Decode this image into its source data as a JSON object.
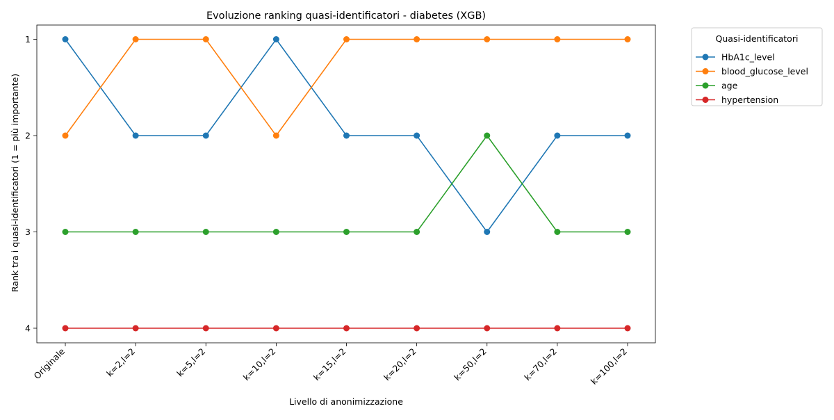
{
  "chart_data": {
    "type": "line",
    "title": "Evoluzione ranking quasi-identificatori - diabetes (XGB)",
    "xlabel": "Livello di anonimizzazione",
    "ylabel": "Rank tra i quasi-identificatori (1 = più importante)",
    "categories": [
      "Originale",
      "k=2,l=2",
      "k=5,l=2",
      "k=10,l=2",
      "k=15,l=2",
      "k=20,l=2",
      "k=50,l=2",
      "k=70,l=2",
      "k=100,l=2"
    ],
    "yticks": [
      "1",
      "2",
      "3",
      "4"
    ],
    "ylim": [
      1,
      4
    ],
    "y_inverted": true,
    "grid": false,
    "legend": {
      "title": "Quasi-identificatori",
      "placement": "outside-top-right"
    },
    "series": [
      {
        "name": "HbA1c_level",
        "color": "#1f77b4",
        "values": [
          1,
          2,
          2,
          1,
          2,
          2,
          3,
          2,
          2
        ]
      },
      {
        "name": "blood_glucose_level",
        "color": "#ff7f0e",
        "values": [
          2,
          1,
          1,
          2,
          1,
          1,
          1,
          1,
          1
        ]
      },
      {
        "name": "age",
        "color": "#2ca02c",
        "values": [
          3,
          3,
          3,
          3,
          3,
          3,
          2,
          3,
          3
        ]
      },
      {
        "name": "hypertension",
        "color": "#d62728",
        "values": [
          4,
          4,
          4,
          4,
          4,
          4,
          4,
          4,
          4
        ]
      }
    ]
  }
}
